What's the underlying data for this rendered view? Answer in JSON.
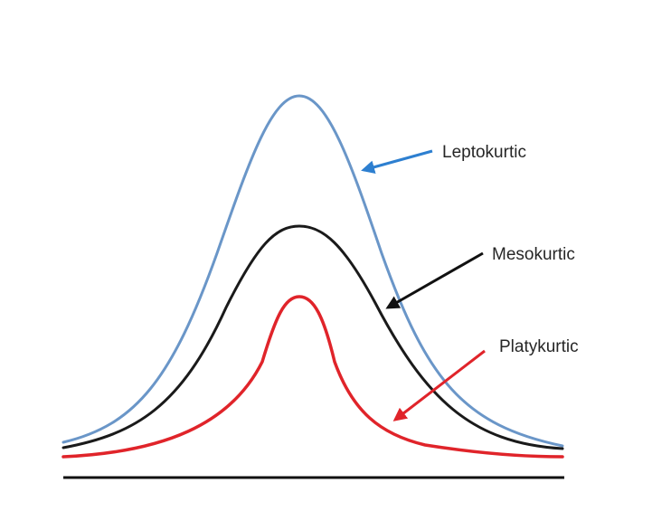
{
  "labels": {
    "leptokurtic": "Leptokurtic",
    "mesokurtic": "Mesokurtic",
    "platykurtic": "Platykurtic"
  },
  "colors": {
    "leptokurtic": "#6a96c8",
    "mesokurtic": "#1a1a1a",
    "platykurtic": "#e0242a",
    "leptokurtic_arrow": "#2d7fd0",
    "mesokurtic_arrow": "#111111",
    "platykurtic_arrow": "#e0242a",
    "baseline": "#111111"
  }
}
